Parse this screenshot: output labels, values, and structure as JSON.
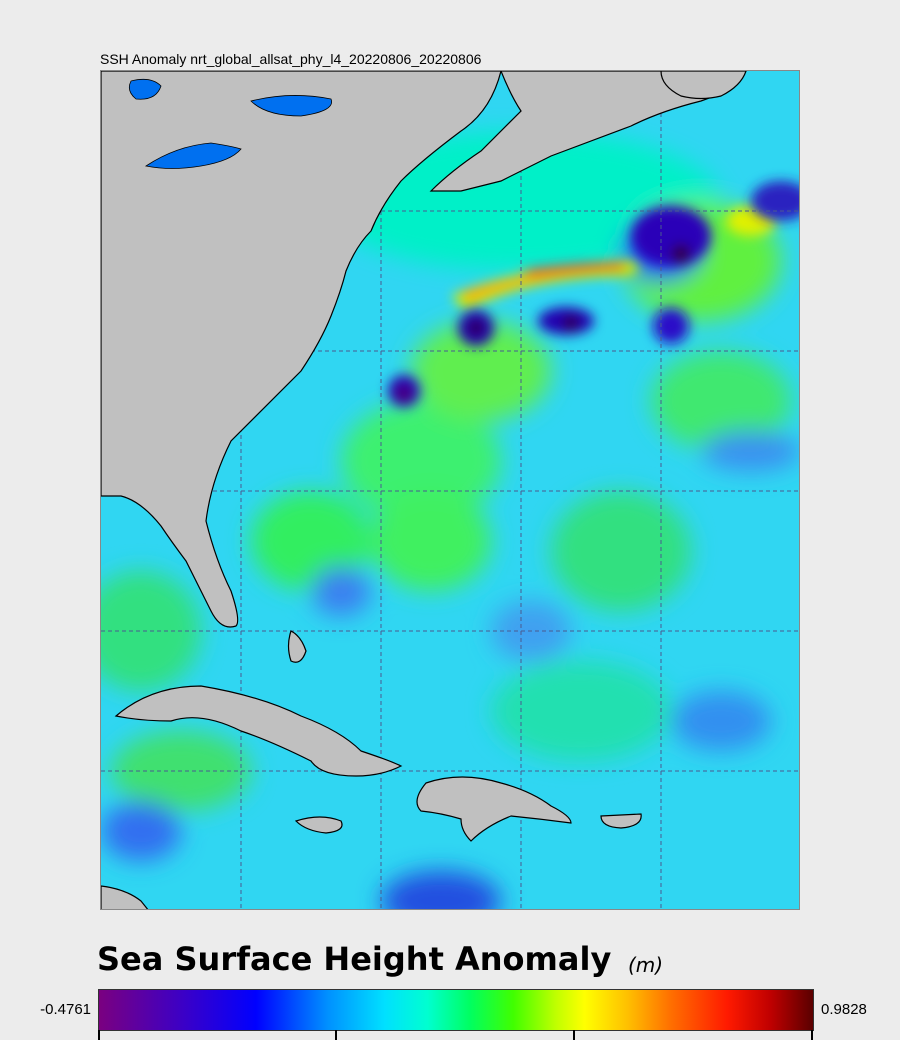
{
  "map": {
    "title": "SSH Anomaly nrt_global_allsat_phy_l4_20220806_20220806",
    "region": "Western North Atlantic, US East Coast, Caribbean",
    "features": [
      "gulf-stream-positive-anomaly",
      "cold-eddies",
      "lakes",
      "caribbean-islands"
    ]
  },
  "legend": {
    "title": "Sea Surface Height Anomaly",
    "unit": "(m)",
    "min_label": "-0.4761",
    "max_label": "0.9828",
    "min": -0.4761,
    "max": 0.9828,
    "colormap": [
      "#7a0080",
      "#0000ff",
      "#00e0ff",
      "#00ff60",
      "#ffff00",
      "#ff1a00",
      "#5a0000"
    ]
  }
}
